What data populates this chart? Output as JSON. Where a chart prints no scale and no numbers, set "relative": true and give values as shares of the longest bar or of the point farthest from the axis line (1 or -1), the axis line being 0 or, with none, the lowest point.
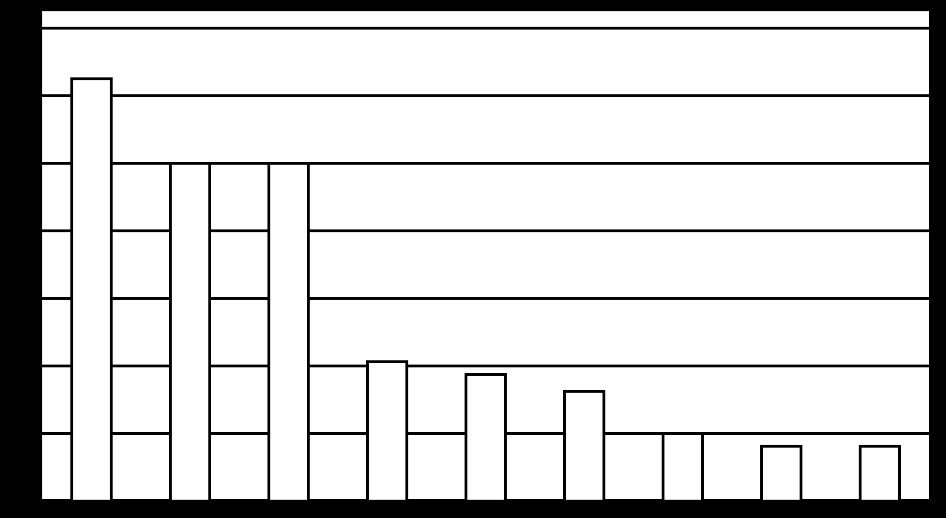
{
  "chart_data": {
    "type": "bar",
    "relative": true,
    "categories": [
      null,
      null,
      null,
      null,
      null,
      null,
      null,
      null,
      null
    ],
    "values": [
      1,
      0.8,
      0.8,
      0.33,
      0.3,
      0.26,
      0.16,
      0.13,
      0.13
    ],
    "color": "#ffffff",
    "grid": "y"
  }
}
